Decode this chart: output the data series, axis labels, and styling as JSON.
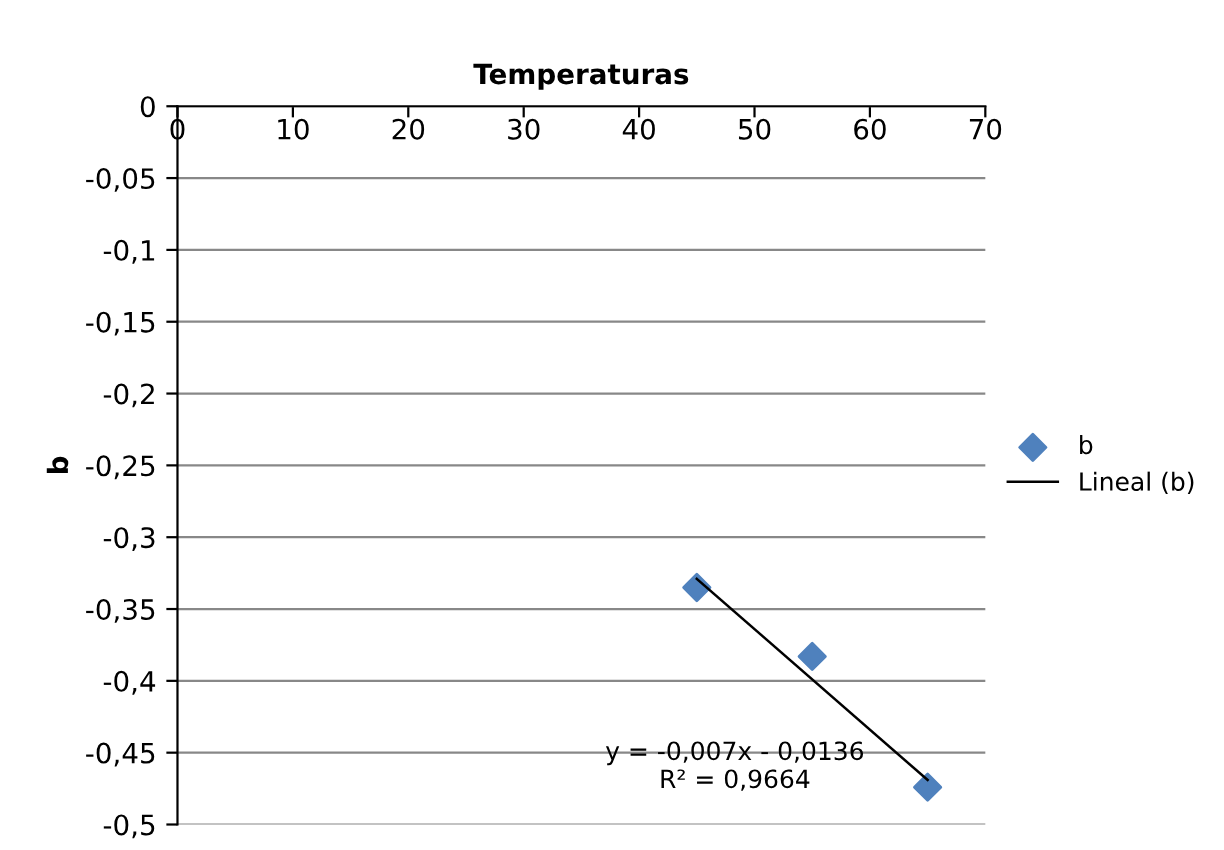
{
  "chart_data": {
    "type": "scatter",
    "title": "Temperaturas",
    "ylabel": "b",
    "x": [
      45,
      55,
      65
    ],
    "series": [
      {
        "name": "b",
        "color": "#4f81bd",
        "marker": "diamond",
        "values": [
          -0.335,
          -0.383,
          -0.474
        ]
      },
      {
        "name": "Lineal (b)",
        "type": "line",
        "color": "#000000",
        "marker": "none",
        "x": [
          45,
          65
        ],
        "values": [
          -0.329,
          -0.469
        ]
      }
    ],
    "annotations": [
      "y = -0,007x - 0,0136\nR² = 0,9664"
    ],
    "xlim": [
      0,
      70
    ],
    "xticks": [
      0,
      10,
      20,
      30,
      40,
      50,
      60,
      70
    ],
    "ylim": [
      -0.5,
      0
    ],
    "yticks": [
      {
        "value": 0,
        "label": "0"
      },
      {
        "value": -0.05,
        "label": "-0,05"
      },
      {
        "value": -0.1,
        "label": "-0,1"
      },
      {
        "value": -0.15,
        "label": "-0,15"
      },
      {
        "value": -0.2,
        "label": "-0,2"
      },
      {
        "value": -0.25,
        "label": "-0,25"
      },
      {
        "value": -0.3,
        "label": "-0,3"
      },
      {
        "value": -0.35,
        "label": "-0,35"
      },
      {
        "value": -0.4,
        "label": "-0,4"
      },
      {
        "value": -0.45,
        "label": "-0,45"
      },
      {
        "value": -0.5,
        "label": "-0,5"
      }
    ],
    "grid": "y",
    "legend": "right"
  }
}
